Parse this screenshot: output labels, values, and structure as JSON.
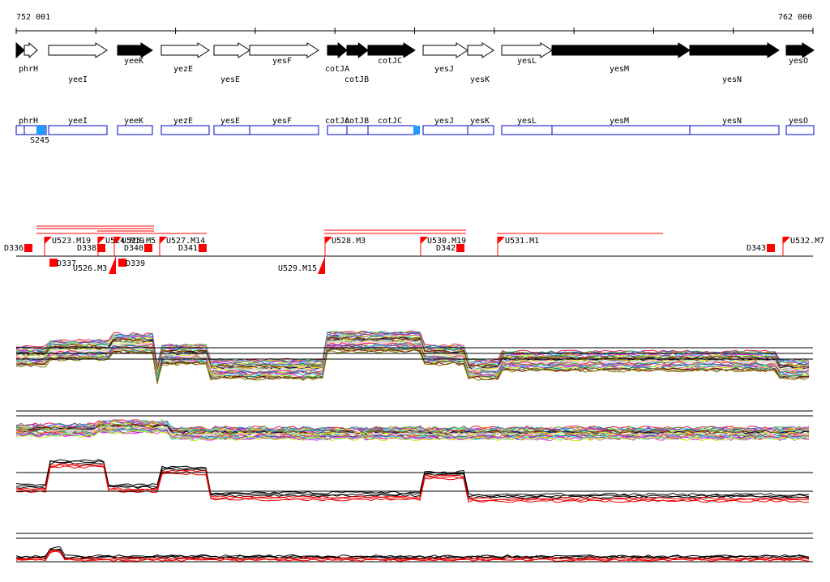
{
  "ruler": {
    "start_label": "752 001",
    "end_label": "762 000"
  },
  "colors": {
    "gene_fill": "#000000",
    "gene_outline": "#000000",
    "cds_outline": "#0000cc",
    "highlight": "#1e9bff",
    "marker": "#ff0000",
    "strand": "#000000"
  },
  "genes": [
    {
      "name": "phrH",
      "strand": "+",
      "filled": true
    },
    {
      "name": "yeeI",
      "strand": "+",
      "filled": false
    },
    {
      "name": "yeeK",
      "strand": "+",
      "filled": true
    },
    {
      "name": "yezE",
      "strand": "+",
      "filled": false
    },
    {
      "name": "yesE",
      "strand": "+",
      "filled": false
    },
    {
      "name": "yesF",
      "strand": "+",
      "filled": false
    },
    {
      "name": "cotJA",
      "strand": "+",
      "filled": true
    },
    {
      "name": "cotJB",
      "strand": "+",
      "filled": true
    },
    {
      "name": "cotJC",
      "strand": "+",
      "filled": true
    },
    {
      "name": "yesJ",
      "strand": "+",
      "filled": false
    },
    {
      "name": "yesK",
      "strand": "+",
      "filled": false
    },
    {
      "name": "yesL",
      "strand": "+",
      "filled": false
    },
    {
      "name": "yesM",
      "strand": "+",
      "filled": true
    },
    {
      "name": "yesN",
      "strand": "+",
      "filled": true
    },
    {
      "name": "yesO",
      "strand": "+",
      "filled": true
    }
  ],
  "cds_track": [
    {
      "name": "phrH"
    },
    {
      "name": "yeeI"
    },
    {
      "name": "yeeK"
    },
    {
      "name": "yezE"
    },
    {
      "name": "yesE"
    },
    {
      "name": "yesF"
    },
    {
      "name": "cotJA"
    },
    {
      "name": "cotJB"
    },
    {
      "name": "cotJC"
    },
    {
      "name": "yesJ"
    },
    {
      "name": "yesK"
    },
    {
      "name": "yesL"
    },
    {
      "name": "yesM"
    },
    {
      "name": "yesN"
    },
    {
      "name": "yesO"
    }
  ],
  "s_label": "S245",
  "upshifts": [
    "U523.M19",
    "U524.M19",
    "U525.M5",
    "U526.M3",
    "U527.M14",
    "U528.M3",
    "U529.M15",
    "U530.M19",
    "U531.M1",
    "U532.M7"
  ],
  "downshifts": [
    "D336",
    "D337",
    "D338",
    "D339",
    "D340",
    "D341",
    "D342",
    "D343"
  ]
}
